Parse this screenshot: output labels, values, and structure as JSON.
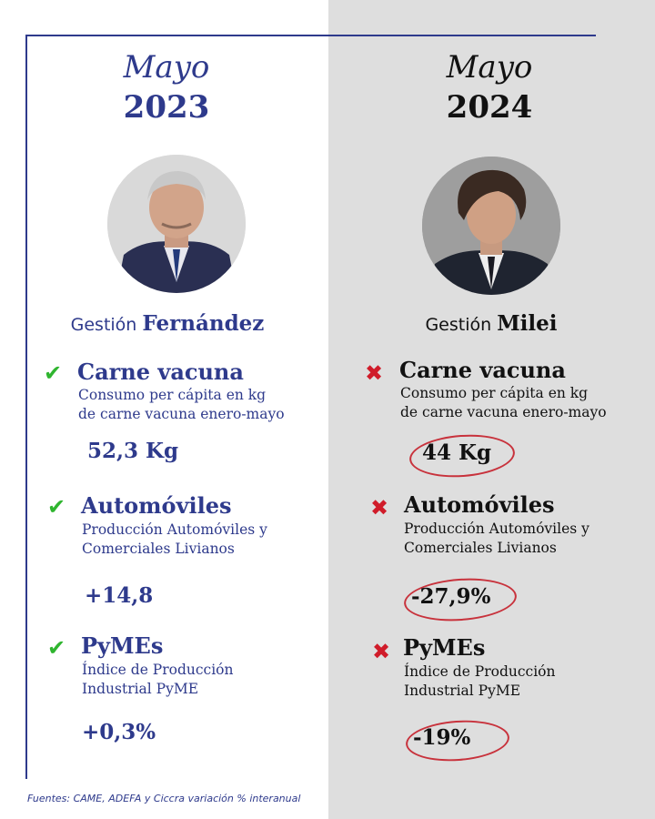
{
  "colors": {
    "left_accent": "#2e3a8c",
    "right_text": "#111111",
    "right_bg": "#dedede",
    "check": "#2fb52f",
    "cross": "#d01c2a",
    "highlight_circle": "#c8323c"
  },
  "left": {
    "month": "Mayo",
    "year": "2023",
    "gestion_prefix": "Gestión",
    "gestion_name": "Fernández",
    "indicators": [
      {
        "status_icon": "check-icon",
        "mark": "✔",
        "title": "Carne vacuna",
        "desc_line1": "Consumo per cápita en kg",
        "desc_line2": "de carne vacuna enero-mayo",
        "value": "52,3 Kg"
      },
      {
        "status_icon": "check-icon",
        "mark": "✔",
        "title": "Automóviles",
        "desc_line1": "Producción Automóviles y",
        "desc_line2": "Comerciales Livianos",
        "value": "+14,8"
      },
      {
        "status_icon": "check-icon",
        "mark": "✔",
        "title": "PyMEs",
        "desc_line1": "Índice de Producción",
        "desc_line2": "Industrial PyME",
        "value": "+0,3%"
      }
    ]
  },
  "right": {
    "month": "Mayo",
    "year": "2024",
    "gestion_prefix": "Gestión",
    "gestion_name": "Milei",
    "indicators": [
      {
        "status_icon": "cross-icon",
        "mark": "✖",
        "title": "Carne vacuna",
        "desc_line1": "Consumo per cápita en kg",
        "desc_line2": "de carne vacuna enero-mayo",
        "value": "44 Kg"
      },
      {
        "status_icon": "cross-icon",
        "mark": "✖",
        "title": "Automóviles",
        "desc_line1": "Producción Automóviles y",
        "desc_line2": "Comerciales Livianos",
        "value": "-27,9%"
      },
      {
        "status_icon": "cross-icon",
        "mark": "✖",
        "title": "PyMEs",
        "desc_line1": "Índice de Producción",
        "desc_line2": "Industrial PyME",
        "value": "-19%"
      }
    ]
  },
  "footer": "Fuentes: CAME, ADEFA y Ciccra variación % interanual"
}
